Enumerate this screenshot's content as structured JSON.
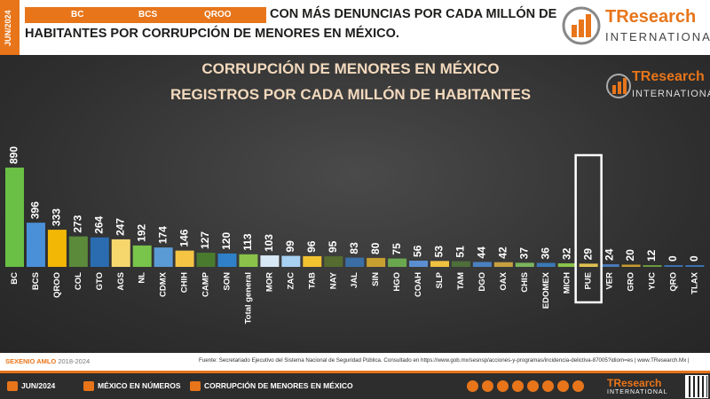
{
  "header": {
    "date_tab": "JUN/2024",
    "highlight_states": [
      "BC",
      "BCS",
      "QROO"
    ],
    "headline_line1": "CON MÁS DENUNCIAS POR CADA MILLÓN DE",
    "headline_line2": "HABITANTES POR CORRUPCIÓN DE MENORES EN MÉXICO.",
    "logo_name": "TResearch",
    "logo_sub": "INTERNATIONAL"
  },
  "chart_data": {
    "type": "bar",
    "title": "CORRUPCIÓN DE MENORES EN MÉXICO",
    "subtitle": "REGISTROS POR CADA MILLÓN DE HABITANTES",
    "categories": [
      "BC",
      "BCS",
      "QROO",
      "COL",
      "GTO",
      "AGS",
      "NL",
      "CDMX",
      "CHIH",
      "CAMP",
      "SON",
      "Total general",
      "MOR",
      "ZAC",
      "TAB",
      "NAY",
      "JAL",
      "SIN",
      "HGO",
      "COAH",
      "SLP",
      "TAM",
      "DGO",
      "OAX",
      "CHIS",
      "EDOMEX",
      "MICH",
      "PUE",
      "VER",
      "GRO",
      "YUC",
      "QRO",
      "TLAX"
    ],
    "values": [
      890,
      396,
      333,
      273,
      264,
      247,
      192,
      174,
      146,
      127,
      120,
      113,
      103,
      99,
      96,
      95,
      83,
      80,
      75,
      56,
      53,
      51,
      44,
      42,
      37,
      36,
      32,
      29,
      24,
      20,
      12,
      0,
      0
    ],
    "colors": [
      "#6abf45",
      "#4a90d9",
      "#f2b705",
      "#5a8a3a",
      "#2b6cb0",
      "#f5d76e",
      "#79c44a",
      "#5b9bd5",
      "#f6c544",
      "#4a7a2e",
      "#2f80c8",
      "#8bc34a",
      "#d9e8f5",
      "#a8d0f0",
      "#f2c230",
      "#556b2f",
      "#3a6ea5",
      "#c8a030",
      "#6aa84f",
      "#5b8ed0",
      "#f0c040",
      "#4e6e3a",
      "#4a80c0",
      "#c8a040",
      "#7ab55c",
      "#3b78b5",
      "#8bc34a",
      "#e0c050",
      "#4a7ab8",
      "#c89a30",
      "#6a9a40",
      "#3a70b0",
      "#3a70b0"
    ],
    "highlight": "PUE",
    "ylim": [
      0,
      890
    ]
  },
  "footer": {
    "left_bold": "SEXENIO AMLO",
    "left_range": "2018-2024",
    "source": "Fuente: Secretariado Ejecutivo del Sistema Nacional de Seguridad Pública. Consultado en https://www.gob.mx/sesnsp/acciones-y-programas/incidencia-delictiva-87005?idiom=es | www.TResearch.Mx |"
  },
  "bottom_bar": {
    "item1": "JUN/2024",
    "item2": "MÉXICO EN NÚMEROS",
    "item3": "CORRUPCIÓN DE MENORES EN MÉXICO",
    "logo_name": "TResearch",
    "logo_sub": "INTERNATIONAL"
  }
}
